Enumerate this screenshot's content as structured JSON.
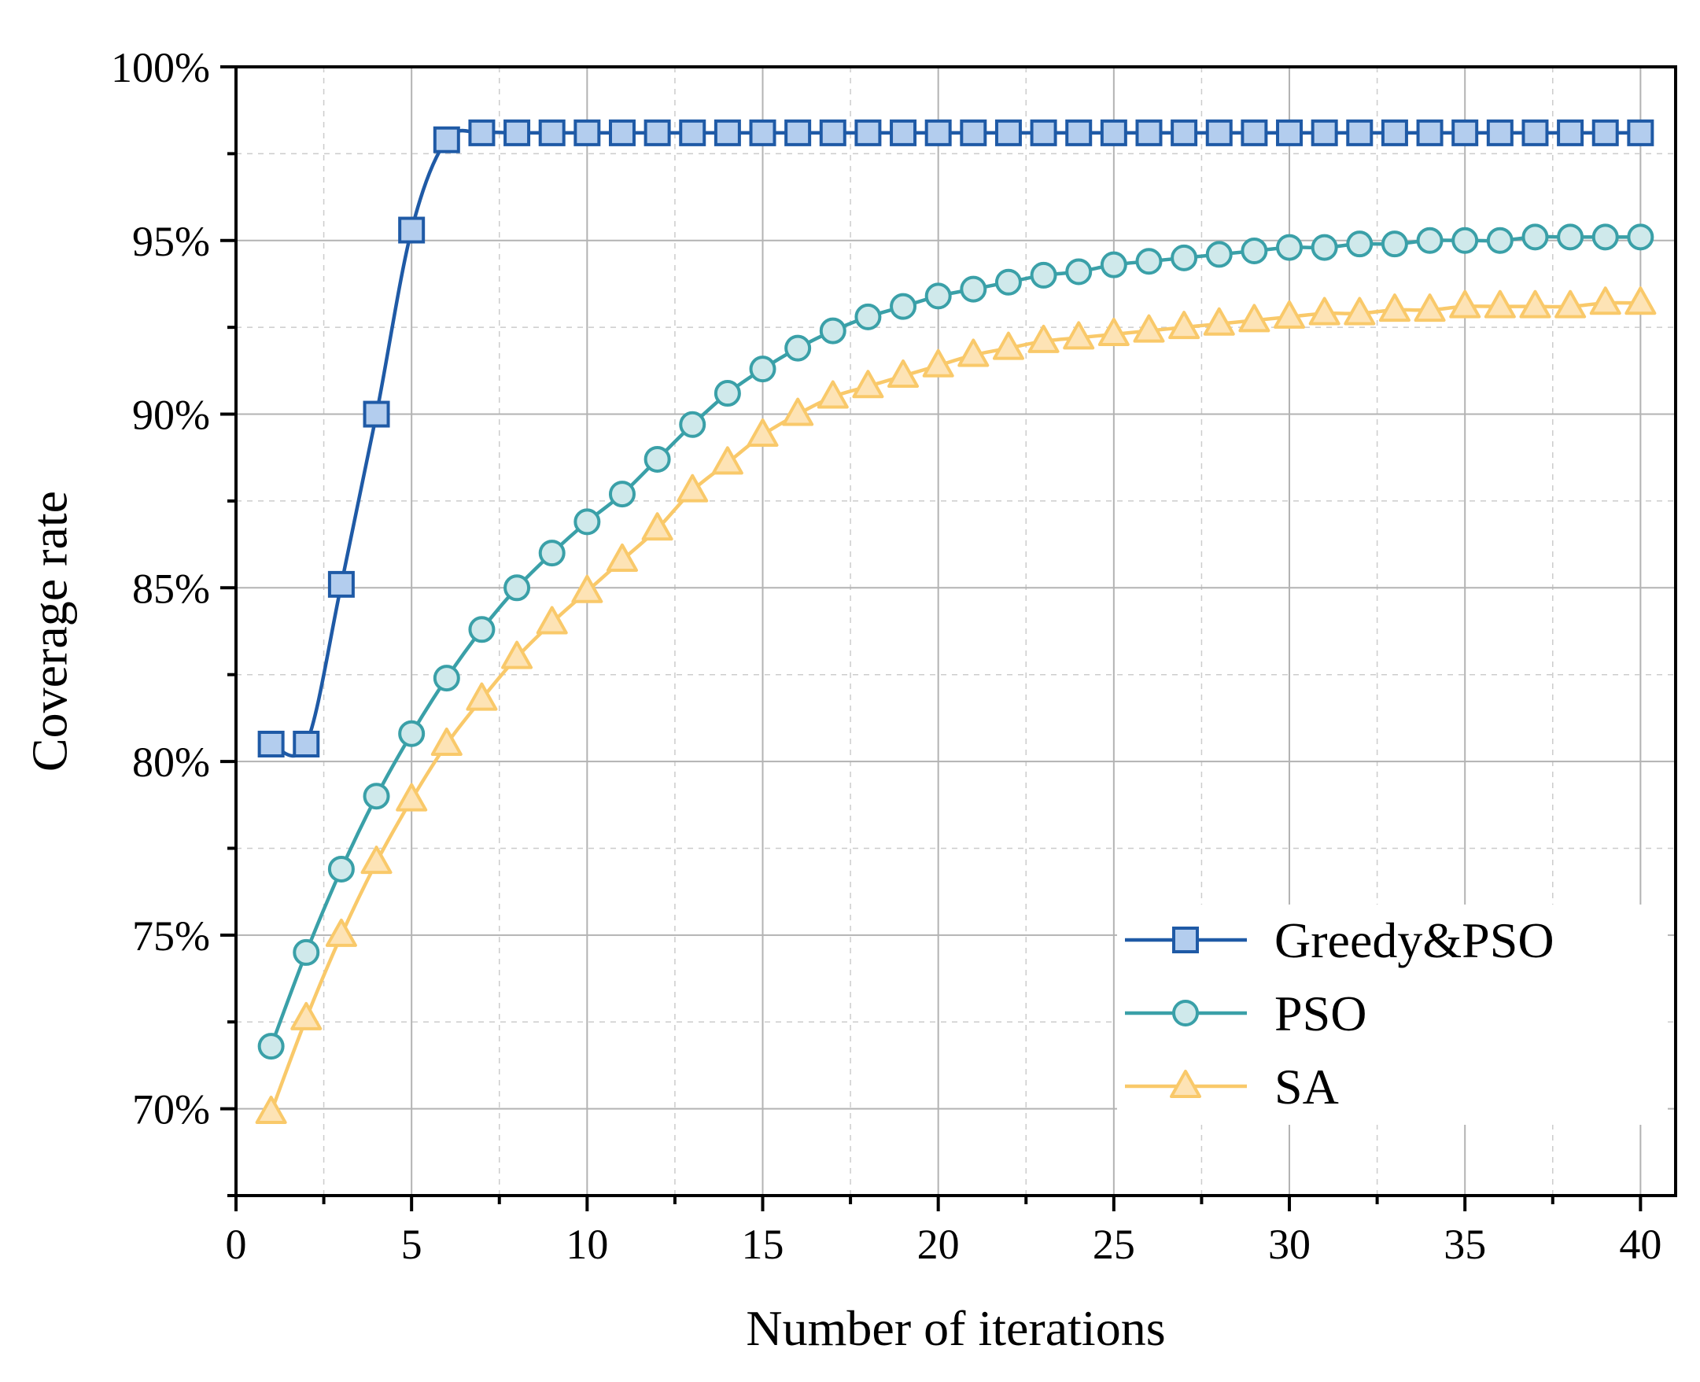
{
  "chart_data": {
    "type": "line",
    "title": "",
    "xlabel": "Number of iterations",
    "ylabel": "Coverage rate",
    "xlim": [
      0,
      41
    ],
    "ylim": [
      0.675,
      1.0
    ],
    "x_ticks": [
      0,
      5,
      10,
      15,
      20,
      25,
      30,
      35,
      40
    ],
    "x_minor_ticks": [
      2.5,
      7.5,
      12.5,
      17.5,
      22.5,
      27.5,
      32.5,
      37.5
    ],
    "y_ticks": [
      0.7,
      0.75,
      0.8,
      0.85,
      0.9,
      0.95,
      1.0
    ],
    "y_tick_labels": [
      "70%",
      "75%",
      "80%",
      "85%",
      "90%",
      "95%",
      "100%"
    ],
    "y_minor_ticks": [
      0.675,
      0.725,
      0.775,
      0.825,
      0.875,
      0.925,
      0.975
    ],
    "grid": true,
    "legend_position": "bottom-right",
    "x": [
      1,
      2,
      3,
      4,
      5,
      6,
      7,
      8,
      9,
      10,
      11,
      12,
      13,
      14,
      15,
      16,
      17,
      18,
      19,
      20,
      21,
      22,
      23,
      24,
      25,
      26,
      27,
      28,
      29,
      30,
      31,
      32,
      33,
      34,
      35,
      36,
      37,
      38,
      39,
      40
    ],
    "series": [
      {
        "name": "Greedy&PSO",
        "color": "#1f5aa6",
        "fill": "#b3cdee",
        "marker": "square",
        "values": [
          0.805,
          0.805,
          0.851,
          0.9,
          0.953,
          0.979,
          0.981,
          0.981,
          0.981,
          0.981,
          0.981,
          0.981,
          0.981,
          0.981,
          0.981,
          0.981,
          0.981,
          0.981,
          0.981,
          0.981,
          0.981,
          0.981,
          0.981,
          0.981,
          0.981,
          0.981,
          0.981,
          0.981,
          0.981,
          0.981,
          0.981,
          0.981,
          0.981,
          0.981,
          0.981,
          0.981,
          0.981,
          0.981,
          0.981,
          0.981
        ]
      },
      {
        "name": "PSO",
        "color": "#3aa0a8",
        "fill": "#cfe9eb",
        "marker": "circle",
        "values": [
          0.718,
          0.745,
          0.769,
          0.79,
          0.808,
          0.824,
          0.838,
          0.85,
          0.86,
          0.869,
          0.877,
          0.887,
          0.897,
          0.906,
          0.913,
          0.919,
          0.924,
          0.928,
          0.931,
          0.934,
          0.936,
          0.938,
          0.94,
          0.941,
          0.943,
          0.944,
          0.945,
          0.946,
          0.947,
          0.948,
          0.948,
          0.949,
          0.949,
          0.95,
          0.95,
          0.95,
          0.951,
          0.951,
          0.951,
          0.951
        ]
      },
      {
        "name": "SA",
        "color": "#f9c96a",
        "fill": "#fde3b5",
        "marker": "triangle",
        "values": [
          0.699,
          0.726,
          0.75,
          0.771,
          0.789,
          0.805,
          0.818,
          0.83,
          0.84,
          0.849,
          0.858,
          0.867,
          0.878,
          0.886,
          0.894,
          0.9,
          0.905,
          0.908,
          0.911,
          0.914,
          0.917,
          0.919,
          0.921,
          0.922,
          0.923,
          0.924,
          0.925,
          0.926,
          0.927,
          0.928,
          0.929,
          0.929,
          0.93,
          0.93,
          0.931,
          0.931,
          0.931,
          0.931,
          0.932,
          0.932
        ]
      }
    ]
  }
}
